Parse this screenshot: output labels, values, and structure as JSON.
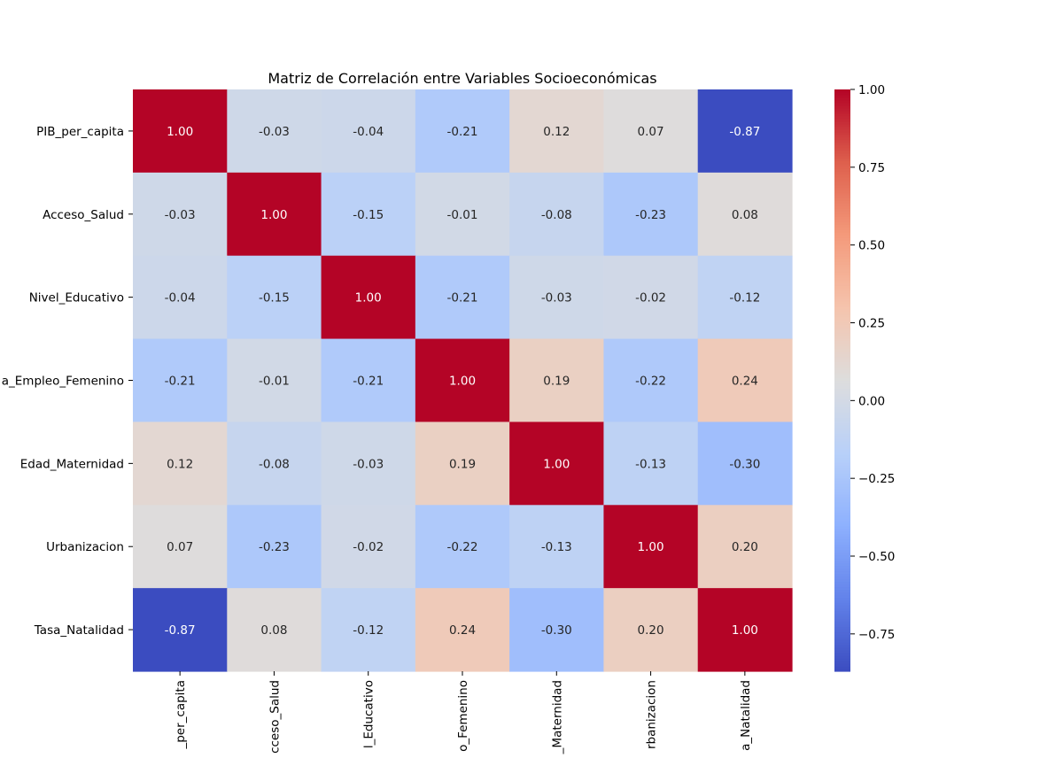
{
  "chart_data": {
    "type": "heatmap",
    "title": "Matriz de Correlación entre Variables Socioeconómicas",
    "row_labels": [
      "PIB_per_capita",
      "Acceso_Salud",
      "Nivel_Educativo",
      "Tasa_Empleo_Femenino",
      "Edad_Maternidad",
      "Urbanizacion",
      "Tasa_Natalidad"
    ],
    "col_labels": [
      "PIB_per_capita",
      "Acceso_Salud",
      "Nivel_Educativo",
      "Tasa_Empleo_Femenino",
      "Edad_Maternidad",
      "Urbanizacion",
      "Tasa_Natalidad"
    ],
    "row_labels_visible": [
      "PIB_per_capita",
      "Acceso_Salud",
      "Nivel_Educativo",
      "a_Empleo_Femenino",
      "Edad_Maternidad",
      "Urbanizacion",
      "Tasa_Natalidad"
    ],
    "col_labels_visible": [
      "_per_capita",
      "cceso_Salud",
      "l_Educativo",
      "o_Femenino",
      "_Maternidad",
      "rbanizacion",
      "a_Natalidad"
    ],
    "values": [
      [
        1.0,
        -0.03,
        -0.04,
        -0.21,
        0.12,
        0.07,
        -0.87
      ],
      [
        -0.03,
        1.0,
        -0.15,
        -0.01,
        -0.08,
        -0.23,
        0.08
      ],
      [
        -0.04,
        -0.15,
        1.0,
        -0.21,
        -0.03,
        -0.02,
        -0.12
      ],
      [
        -0.21,
        -0.01,
        -0.21,
        1.0,
        0.19,
        -0.22,
        0.24
      ],
      [
        0.12,
        -0.08,
        -0.03,
        0.19,
        1.0,
        -0.13,
        -0.3
      ],
      [
        0.07,
        -0.23,
        -0.02,
        -0.22,
        -0.13,
        1.0,
        0.2
      ],
      [
        -0.87,
        0.08,
        -0.12,
        0.24,
        -0.3,
        0.2,
        1.0
      ]
    ],
    "value_labels": [
      [
        "1.00",
        "-0.03",
        "-0.04",
        "-0.21",
        "0.12",
        "0.07",
        "-0.87"
      ],
      [
        "-0.03",
        "1.00",
        "-0.15",
        "-0.01",
        "-0.08",
        "-0.23",
        "0.08"
      ],
      [
        "-0.04",
        "-0.15",
        "1.00",
        "-0.21",
        "-0.03",
        "-0.02",
        "-0.12"
      ],
      [
        "-0.21",
        "-0.01",
        "-0.21",
        "1.00",
        "0.19",
        "-0.22",
        "0.24"
      ],
      [
        "0.12",
        "-0.08",
        "-0.03",
        "0.19",
        "1.00",
        "-0.13",
        "-0.30"
      ],
      [
        "0.07",
        "-0.23",
        "-0.02",
        "-0.22",
        "-0.13",
        "1.00",
        "0.20"
      ],
      [
        "-0.87",
        "0.08",
        "-0.12",
        "0.24",
        "-0.30",
        "0.20",
        "1.00"
      ]
    ],
    "colormap": "coolwarm",
    "vmin": -0.87,
    "vmax": 1.0,
    "colorbar": {
      "ticks": [
        1.0,
        0.75,
        0.5,
        0.25,
        0.0,
        -0.25,
        -0.5,
        -0.75
      ],
      "tick_labels": [
        "1.00",
        "0.75",
        "0.50",
        "0.25",
        "0.00",
        "−0.25",
        "−0.50",
        "−0.75"
      ]
    }
  }
}
